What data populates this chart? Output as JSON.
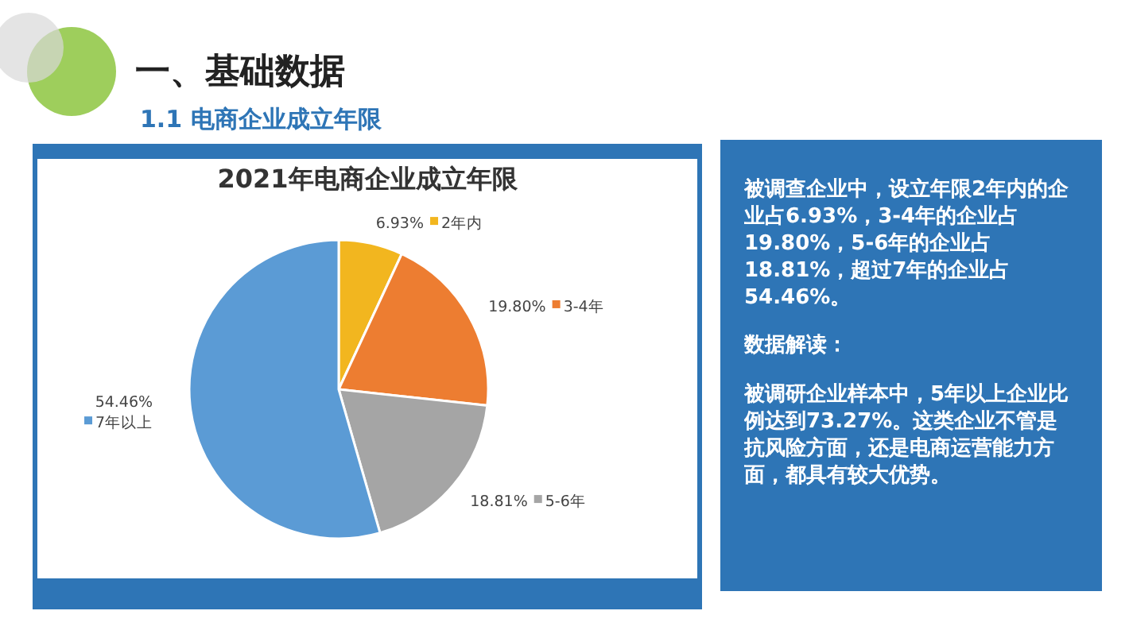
{
  "chart_data": [
    {
      "type": "pie",
      "title": "2021年电商企业成立年限",
      "annotations": [
        "一、基础数据",
        "1.1 电商企业成立年限"
      ],
      "categories": [
        "2年内",
        "3-4年",
        "5-6年",
        "7年以上"
      ],
      "values": [
        6.93,
        19.8,
        18.81,
        54.46
      ],
      "value_labels": [
        "6.93%",
        "19.80%",
        "18.81%",
        "54.46%"
      ],
      "colors": [
        "#f2b61f",
        "#ed7d31",
        "#a5a5a5",
        "#5b9bd5"
      ],
      "legend": "right"
    },
    {
      "type": "other",
      "annotations": [
        "被调查企业中，设立年限2年内的企业占6.93%，3-4年的企业占19.80%，5-6年的企业占18.81%，超过7年的企业占54.46%。",
        "数据解读：",
        "被调研企业样本中，5年以上企业比例达到73.27%。这类企业不管是抗风险方面，还是电商运营能力方面，都具有较大优势。"
      ]
    }
  ]
}
